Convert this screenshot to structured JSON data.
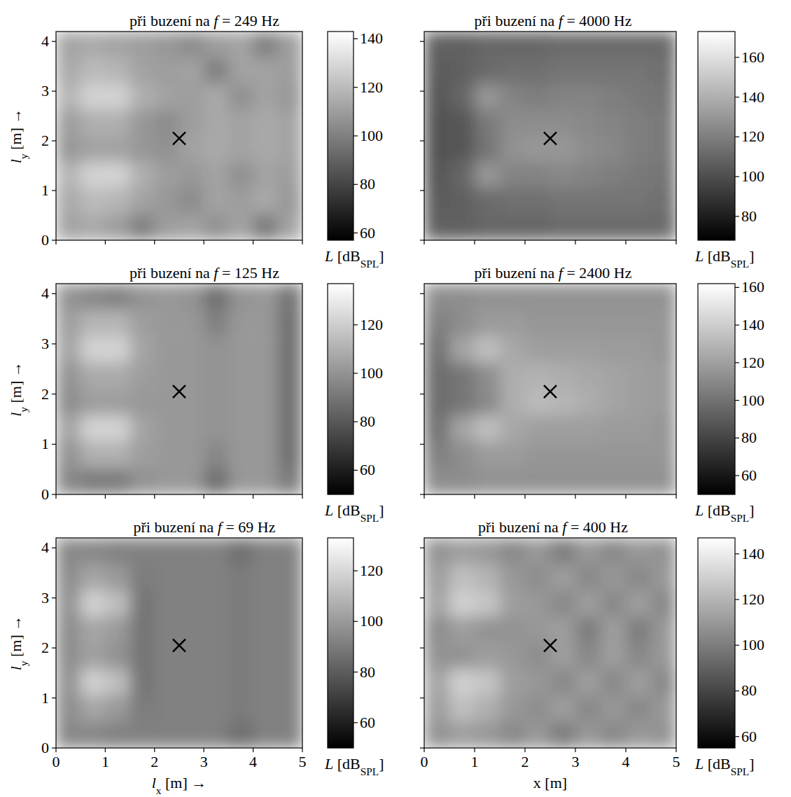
{
  "chart_data": [
    {
      "type": "heatmap",
      "title": [
        "při buzení na ",
        "f",
        " = 249 Hz"
      ],
      "ylabel": [
        "l",
        "y",
        " [m] →"
      ],
      "xlim": [
        0,
        5
      ],
      "ylim": [
        0,
        4.2
      ],
      "xticks": [
        0,
        1,
        2,
        3,
        4,
        5
      ],
      "yticks": [
        0,
        1,
        2,
        3,
        4
      ],
      "tick_labels": "y",
      "receiver": [
        2.5,
        2.05
      ],
      "cells": [
        [
          112,
          114,
          112,
          110,
          108,
          104,
          110,
          112,
          100,
          110
        ],
        [
          114,
          120,
          118,
          112,
          110,
          112,
          100,
          112,
          112,
          110
        ],
        [
          118,
          128,
          128,
          116,
          112,
          110,
          114,
          106,
          112,
          108
        ],
        [
          110,
          116,
          116,
          108,
          104,
          110,
          114,
          112,
          114,
          112
        ],
        [
          108,
          112,
          112,
          108,
          106,
          112,
          114,
          112,
          114,
          112
        ],
        [
          118,
          128,
          128,
          116,
          110,
          108,
          112,
          106,
          112,
          110
        ],
        [
          114,
          120,
          118,
          112,
          108,
          104,
          112,
          110,
          114,
          108
        ],
        [
          112,
          114,
          110,
          100,
          110,
          112,
          106,
          112,
          98,
          112
        ]
      ],
      "colorbar": {
        "label": [
          "L",
          " [dB",
          "SPL",
          "]"
        ],
        "range": [
          57,
          143
        ],
        "ticks": [
          60,
          80,
          100,
          120,
          140
        ]
      }
    },
    {
      "type": "heatmap",
      "title": [
        "při buzení na ",
        "f",
        " = 4000 Hz"
      ],
      "xlim": [
        0,
        5
      ],
      "ylim": [
        0,
        4.2
      ],
      "xticks": [
        0,
        1,
        2,
        3,
        4,
        5
      ],
      "yticks": [
        0,
        1,
        2,
        3,
        4
      ],
      "tick_labels": false,
      "receiver": [
        2.5,
        2.05
      ],
      "cells": [
        [
          108,
          108,
          110,
          110,
          110,
          112,
          112,
          112,
          112,
          112
        ],
        [
          106,
          108,
          112,
          114,
          114,
          116,
          116,
          116,
          116,
          114
        ],
        [
          104,
          110,
          130,
          122,
          120,
          122,
          122,
          120,
          118,
          116
        ],
        [
          102,
          104,
          118,
          126,
          126,
          126,
          124,
          122,
          120,
          118
        ],
        [
          102,
          104,
          116,
          128,
          130,
          130,
          126,
          124,
          120,
          118
        ],
        [
          104,
          110,
          130,
          122,
          122,
          124,
          122,
          120,
          118,
          116
        ],
        [
          106,
          108,
          112,
          114,
          114,
          116,
          116,
          116,
          116,
          114
        ],
        [
          108,
          108,
          110,
          110,
          110,
          112,
          112,
          112,
          112,
          112
        ]
      ],
      "colorbar": {
        "label": [
          "L",
          " [dB",
          "SPL",
          "]"
        ],
        "range": [
          68,
          173
        ],
        "ticks": [
          80,
          100,
          120,
          140,
          160
        ]
      }
    },
    {
      "type": "heatmap",
      "title": [
        "při buzení na ",
        "f",
        " = 125 Hz"
      ],
      "ylabel": [
        "l",
        "y",
        " [m] →"
      ],
      "xlim": [
        0,
        5
      ],
      "ylim": [
        0,
        4.2
      ],
      "xticks": [
        0,
        1,
        2,
        3,
        4,
        5
      ],
      "yticks": [
        0,
        1,
        2,
        3,
        4
      ],
      "tick_labels": "y",
      "receiver": [
        2.5,
        2.05
      ],
      "cells": [
        [
          100,
          96,
          94,
          100,
          102,
          100,
          88,
          100,
          102,
          90
        ],
        [
          104,
          112,
          112,
          104,
          102,
          102,
          94,
          102,
          102,
          88
        ],
        [
          106,
          122,
          122,
          106,
          102,
          102,
          100,
          102,
          102,
          88
        ],
        [
          100,
          108,
          108,
          104,
          102,
          102,
          100,
          102,
          102,
          88
        ],
        [
          98,
          104,
          104,
          102,
          102,
          102,
          100,
          102,
          102,
          88
        ],
        [
          106,
          122,
          122,
          106,
          102,
          102,
          100,
          102,
          102,
          88
        ],
        [
          100,
          110,
          110,
          104,
          102,
          102,
          96,
          102,
          102,
          88
        ],
        [
          96,
          92,
          92,
          100,
          102,
          102,
          88,
          102,
          102,
          92
        ]
      ],
      "colorbar": {
        "label": [
          "L",
          " [dB",
          "SPL",
          "]"
        ],
        "range": [
          50,
          137
        ],
        "ticks": [
          60,
          80,
          100,
          120
        ]
      }
    },
    {
      "type": "heatmap",
      "title": [
        "při buzení na ",
        "f",
        " = 2400 Hz"
      ],
      "xlim": [
        0,
        5
      ],
      "ylim": [
        0,
        4.2
      ],
      "xticks": [
        0,
        1,
        2,
        3,
        4,
        5
      ],
      "yticks": [
        0,
        1,
        2,
        3,
        4
      ],
      "tick_labels": false,
      "receiver": [
        2.5,
        2.05
      ],
      "cells": [
        [
          112,
          112,
          114,
          114,
          114,
          114,
          114,
          114,
          114,
          114
        ],
        [
          106,
          112,
          118,
          118,
          116,
          116,
          116,
          116,
          116,
          116
        ],
        [
          100,
          122,
          134,
          124,
          120,
          120,
          120,
          118,
          118,
          116
        ],
        [
          98,
          102,
          112,
          126,
          128,
          126,
          124,
          122,
          120,
          118
        ],
        [
          98,
          102,
          110,
          126,
          132,
          130,
          126,
          122,
          120,
          118
        ],
        [
          100,
          122,
          134,
          124,
          120,
          120,
          120,
          118,
          118,
          116
        ],
        [
          106,
          112,
          118,
          118,
          116,
          116,
          116,
          116,
          116,
          116
        ],
        [
          112,
          112,
          114,
          114,
          114,
          114,
          114,
          114,
          114,
          114
        ]
      ],
      "colorbar": {
        "label": [
          "L",
          " [dB",
          "SPL",
          "]"
        ],
        "range": [
          50,
          162
        ],
        "ticks": [
          60,
          80,
          100,
          120,
          140,
          160
        ]
      }
    },
    {
      "type": "heatmap",
      "title": [
        "při buzení na ",
        "f",
        " = 69 Hz"
      ],
      "xlabel": [
        "l",
        "x",
        " [m] →"
      ],
      "ylabel": [
        "l",
        "y",
        " [m] →"
      ],
      "xlim": [
        0,
        5
      ],
      "ylim": [
        0,
        4.2
      ],
      "xticks": [
        0,
        1,
        2,
        3,
        4,
        5
      ],
      "yticks": [
        0,
        1,
        2,
        3,
        4
      ],
      "receiver": [
        2.5,
        2.05
      ],
      "cells": [
        [
          94,
          94,
          92,
          92,
          92,
          92,
          92,
          86,
          92,
          92
        ],
        [
          96,
          104,
          100,
          90,
          92,
          92,
          92,
          90,
          92,
          92
        ],
        [
          98,
          118,
          112,
          88,
          92,
          92,
          92,
          90,
          92,
          92
        ],
        [
          96,
          104,
          100,
          88,
          92,
          92,
          92,
          90,
          92,
          92
        ],
        [
          96,
          102,
          98,
          88,
          92,
          92,
          92,
          90,
          92,
          92
        ],
        [
          98,
          118,
          112,
          88,
          92,
          92,
          92,
          90,
          92,
          92
        ],
        [
          96,
          104,
          100,
          90,
          92,
          92,
          92,
          90,
          92,
          92
        ],
        [
          94,
          94,
          92,
          92,
          92,
          92,
          92,
          86,
          92,
          92
        ]
      ],
      "colorbar": {
        "label": [
          "L",
          " [dB",
          "SPL",
          "]"
        ],
        "range": [
          50,
          133
        ],
        "ticks": [
          60,
          80,
          100,
          120
        ]
      }
    },
    {
      "type": "heatmap",
      "title": [
        "při buzení na ",
        "f",
        " = 400 Hz"
      ],
      "xlabel": "x [m]",
      "xlim": [
        0,
        5
      ],
      "ylim": [
        0,
        4.2
      ],
      "xticks": [
        0,
        1,
        2,
        3,
        4,
        5
      ],
      "yticks": [
        0,
        1,
        2,
        3,
        4
      ],
      "tick_labels": "x",
      "receiver": [
        2.5,
        2.05
      ],
      "cells": [
        [
          108,
          112,
          110,
          104,
          110,
          100,
          110,
          104,
          110,
          108
        ],
        [
          112,
          124,
          120,
          110,
          106,
          112,
          104,
          110,
          104,
          110
        ],
        [
          114,
          130,
          126,
          112,
          110,
          104,
          112,
          104,
          112,
          104
        ],
        [
          106,
          112,
          108,
          108,
          110,
          112,
          100,
          112,
          100,
          110
        ],
        [
          108,
          108,
          112,
          110,
          106,
          112,
          104,
          112,
          104,
          110
        ],
        [
          114,
          130,
          126,
          112,
          110,
          104,
          112,
          104,
          112,
          104
        ],
        [
          112,
          124,
          118,
          110,
          106,
          112,
          104,
          110,
          104,
          110
        ],
        [
          108,
          112,
          110,
          104,
          110,
          100,
          110,
          104,
          110,
          108
        ]
      ],
      "colorbar": {
        "label": [
          "L",
          " [dB",
          "SPL",
          "]"
        ],
        "range": [
          55,
          147
        ],
        "ticks": [
          60,
          80,
          100,
          120,
          140
        ]
      }
    }
  ]
}
